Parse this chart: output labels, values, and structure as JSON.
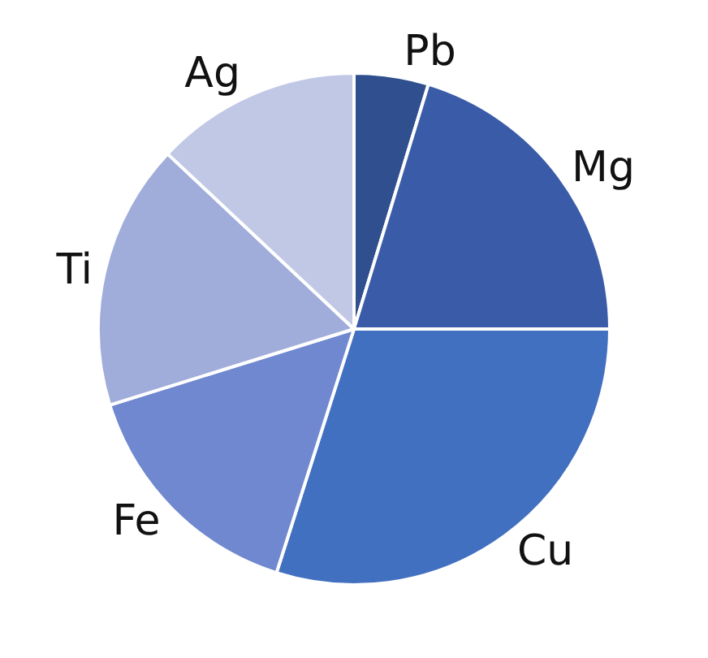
{
  "chart_data": {
    "type": "pie",
    "categories": [
      "Pb",
      "Mg",
      "Cu",
      "Fe",
      "Ti",
      "Ag"
    ],
    "values": [
      4.7,
      20.3,
      29.9,
      15.3,
      16.8,
      13.0
    ],
    "colors": [
      "#2f4f8f",
      "#3a5ca8",
      "#4270c0",
      "#7088d0",
      "#a0acda",
      "#c0c8e6"
    ],
    "legend": false
  }
}
